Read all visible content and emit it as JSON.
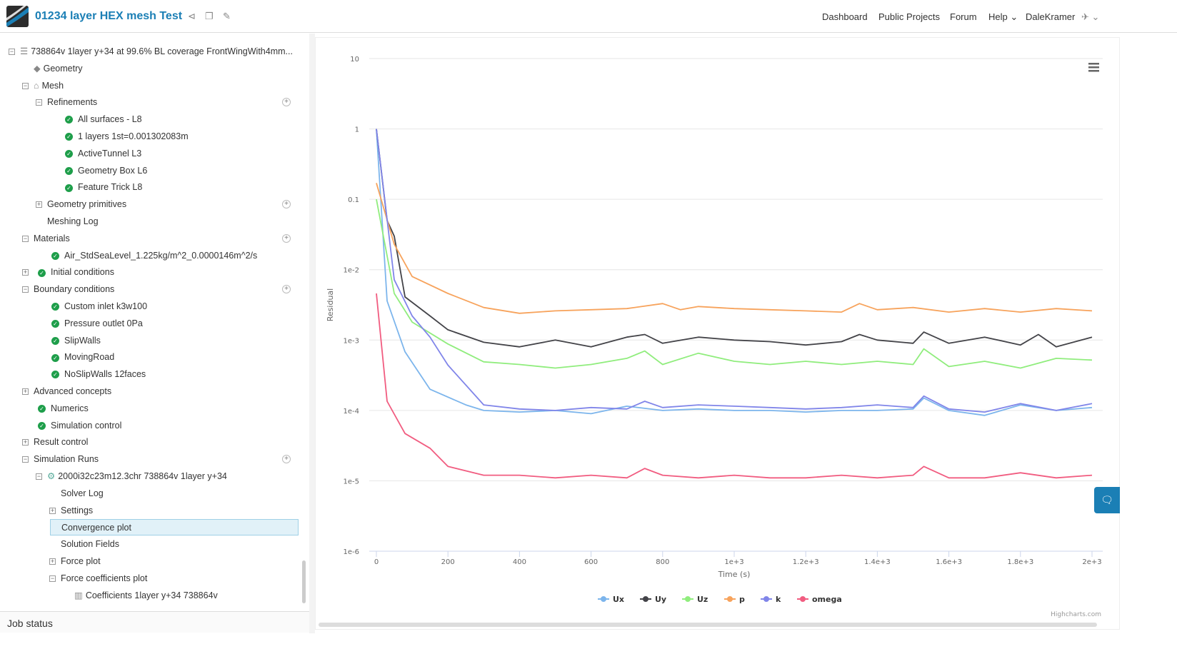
{
  "header": {
    "title": "01234 layer HEX mesh Test",
    "nav": [
      "Dashboard",
      "Public Projects",
      "Forum",
      "Help",
      "DaleKramer"
    ]
  },
  "tree": [
    {
      "label": "738864v 1layer y+34 at 99.6% BL coverage FrontWingWith4mm...",
      "d": 0,
      "tog": "-",
      "icon": "list"
    },
    {
      "label": "Geometry",
      "d": 1,
      "tog": "",
      "icon": "geometry"
    },
    {
      "label": "Mesh",
      "d": 1,
      "tog": "-",
      "icon": "mesh"
    },
    {
      "label": "Refinements",
      "d": 2,
      "tog": "-",
      "icon": "",
      "add": true
    },
    {
      "label": "All surfaces - L8",
      "d": 3,
      "tog": "",
      "icon": "check"
    },
    {
      "label": "1 layers 1st=0.001302083m",
      "d": 3,
      "tog": "",
      "icon": "check"
    },
    {
      "label": "ActiveTunnel L3",
      "d": 3,
      "tog": "",
      "icon": "check"
    },
    {
      "label": "Geometry Box L6",
      "d": 3,
      "tog": "",
      "icon": "check"
    },
    {
      "label": "Feature Trick L8",
      "d": 3,
      "tog": "",
      "icon": "check"
    },
    {
      "label": "Geometry primitives",
      "d": 2,
      "tog": "+",
      "icon": "",
      "add": true
    },
    {
      "label": "Meshing Log",
      "d": 2,
      "tog": "",
      "icon": ""
    },
    {
      "label": "Materials",
      "d": 1,
      "tog": "-",
      "icon": "",
      "add": true
    },
    {
      "label": "Air_StdSeaLevel_1.225kg/m^2_0.0000146m^2/s",
      "d": 2,
      "tog": "",
      "icon": "check"
    },
    {
      "label": "Initial conditions",
      "d": 1,
      "tog": "+",
      "icon": "check"
    },
    {
      "label": "Boundary conditions",
      "d": 1,
      "tog": "-",
      "icon": "",
      "add": true
    },
    {
      "label": "Custom inlet k3w100",
      "d": 2,
      "tog": "",
      "icon": "check"
    },
    {
      "label": "Pressure outlet 0Pa",
      "d": 2,
      "tog": "",
      "icon": "check"
    },
    {
      "label": "SlipWalls",
      "d": 2,
      "tog": "",
      "icon": "check"
    },
    {
      "label": "MovingRoad",
      "d": 2,
      "tog": "",
      "icon": "check"
    },
    {
      "label": "NoSlipWalls 12faces",
      "d": 2,
      "tog": "",
      "icon": "check"
    },
    {
      "label": "Advanced concepts",
      "d": 1,
      "tog": "+",
      "icon": ""
    },
    {
      "label": "Numerics",
      "d": 1,
      "tog": "",
      "icon": "check"
    },
    {
      "label": "Simulation control",
      "d": 1,
      "tog": "",
      "icon": "check"
    },
    {
      "label": "Result control",
      "d": 1,
      "tog": "+",
      "icon": ""
    },
    {
      "label": "Simulation Runs",
      "d": 1,
      "tog": "-",
      "icon": "",
      "add": true
    },
    {
      "label": "2000i32c23m12.3chr 738864v 1layer y+34",
      "d": 2,
      "tog": "-",
      "icon": "gear"
    },
    {
      "label": "Solver Log",
      "d": 3,
      "tog": "",
      "icon": ""
    },
    {
      "label": "Settings",
      "d": 3,
      "tog": "+",
      "icon": ""
    },
    {
      "label": "Convergence plot",
      "d": 3,
      "tog": "",
      "icon": "",
      "selected": true
    },
    {
      "label": "Solution Fields",
      "d": 3,
      "tog": "",
      "icon": ""
    },
    {
      "label": "Force plot",
      "d": 3,
      "tog": "+",
      "icon": ""
    },
    {
      "label": "Force coefficients plot",
      "d": 3,
      "tog": "-",
      "icon": ""
    },
    {
      "label": "Coefficients 1layer y+34 738864v",
      "d": 4,
      "tog": "",
      "icon": "chart"
    }
  ],
  "job_status": "Job status",
  "credits": "Highcharts.com",
  "chart_data": {
    "type": "line",
    "xlabel": "Time (s)",
    "ylabel": "Residual",
    "yscale": "log",
    "xlim": [
      0,
      2000
    ],
    "ylim": [
      1e-06,
      10
    ],
    "xticks": [
      {
        "v": 0,
        "l": "0"
      },
      {
        "v": 200,
        "l": "200"
      },
      {
        "v": 400,
        "l": "400"
      },
      {
        "v": 600,
        "l": "600"
      },
      {
        "v": 800,
        "l": "800"
      },
      {
        "v": 1000,
        "l": "1e+3"
      },
      {
        "v": 1200,
        "l": "1.2e+3"
      },
      {
        "v": 1400,
        "l": "1.4e+3"
      },
      {
        "v": 1600,
        "l": "1.6e+3"
      },
      {
        "v": 1800,
        "l": "1.8e+3"
      },
      {
        "v": 2000,
        "l": "2e+3"
      }
    ],
    "yticks": [
      {
        "v": 10,
        "l": "10"
      },
      {
        "v": 1,
        "l": "1"
      },
      {
        "v": 0.1,
        "l": "0.1"
      },
      {
        "v": 0.01,
        "l": "1e-2"
      },
      {
        "v": 0.001,
        "l": "1e-3"
      },
      {
        "v": 0.0001,
        "l": "1e-4"
      },
      {
        "v": 1e-05,
        "l": "1e-5"
      },
      {
        "v": 1e-06,
        "l": "1e-6"
      }
    ],
    "legend": "bottom-center",
    "series": [
      {
        "name": "Ux",
        "color": "#7cb5ec",
        "x": [
          0,
          30,
          80,
          150,
          250,
          300,
          400,
          500,
          600,
          700,
          800,
          900,
          1000,
          1100,
          1200,
          1300,
          1400,
          1500,
          1530,
          1600,
          1700,
          1800,
          1900,
          2000
        ],
        "y": [
          1,
          0.0036,
          0.00068,
          0.0002,
          0.00012,
          0.0001,
          9.5e-05,
          0.0001,
          9e-05,
          0.000115,
          0.0001,
          0.000105,
          0.0001,
          0.0001,
          9.5e-05,
          0.0001,
          0.0001,
          0.000105,
          0.00015,
          0.0001,
          8.5e-05,
          0.00012,
          0.0001,
          0.00011
        ]
      },
      {
        "name": "Uy",
        "color": "#434348",
        "x": [
          0,
          30,
          50,
          80,
          150,
          200,
          300,
          400,
          500,
          600,
          700,
          750,
          800,
          900,
          1000,
          1100,
          1200,
          1300,
          1350,
          1400,
          1500,
          1530,
          1600,
          1700,
          1800,
          1850,
          1900,
          2000
        ],
        "y": [
          1,
          0.05,
          0.03,
          0.0041,
          0.0022,
          0.0014,
          0.00093,
          0.0008,
          0.001,
          0.0008,
          0.0011,
          0.0012,
          0.0009,
          0.0011,
          0.001,
          0.00095,
          0.00085,
          0.00095,
          0.0012,
          0.001,
          0.0009,
          0.0013,
          0.0009,
          0.0011,
          0.00085,
          0.0012,
          0.0008,
          0.0011
        ]
      },
      {
        "name": "Uz",
        "color": "#90ed7d",
        "x": [
          0,
          50,
          100,
          200,
          300,
          400,
          500,
          600,
          700,
          750,
          800,
          900,
          1000,
          1100,
          1200,
          1300,
          1400,
          1500,
          1530,
          1600,
          1700,
          1800,
          1900,
          2000
        ],
        "y": [
          0.1,
          0.0046,
          0.0018,
          0.00088,
          0.00049,
          0.00045,
          0.0004,
          0.00045,
          0.00055,
          0.0007,
          0.00045,
          0.00065,
          0.0005,
          0.00045,
          0.0005,
          0.00045,
          0.0005,
          0.00045,
          0.00075,
          0.00042,
          0.0005,
          0.0004,
          0.00055,
          0.00052
        ]
      },
      {
        "name": "p",
        "color": "#f7a35c",
        "x": [
          0,
          50,
          100,
          200,
          300,
          400,
          500,
          600,
          700,
          800,
          850,
          900,
          1000,
          1100,
          1200,
          1300,
          1350,
          1400,
          1500,
          1600,
          1700,
          1800,
          1900,
          2000
        ],
        "y": [
          0.17,
          0.023,
          0.008,
          0.0046,
          0.0029,
          0.0024,
          0.0026,
          0.0027,
          0.0028,
          0.0033,
          0.0027,
          0.003,
          0.0028,
          0.0027,
          0.0026,
          0.0025,
          0.0033,
          0.0027,
          0.0029,
          0.0025,
          0.0028,
          0.0025,
          0.0028,
          0.0026
        ]
      },
      {
        "name": "k",
        "color": "#8085e9",
        "x": [
          0,
          50,
          100,
          150,
          200,
          300,
          400,
          500,
          600,
          700,
          750,
          800,
          900,
          1000,
          1100,
          1200,
          1300,
          1400,
          1500,
          1530,
          1600,
          1700,
          1800,
          1900,
          2000
        ],
        "y": [
          1,
          0.0072,
          0.0022,
          0.0011,
          0.00044,
          0.00012,
          0.000105,
          0.0001,
          0.00011,
          0.000105,
          0.000135,
          0.00011,
          0.00012,
          0.000115,
          0.00011,
          0.000105,
          0.00011,
          0.00012,
          0.00011,
          0.00016,
          0.000105,
          9.5e-05,
          0.000125,
          0.0001,
          0.000125
        ]
      },
      {
        "name": "omega",
        "color": "#f15c80",
        "x": [
          0,
          30,
          80,
          150,
          200,
          300,
          400,
          500,
          600,
          700,
          750,
          800,
          900,
          1000,
          1100,
          1200,
          1300,
          1400,
          1500,
          1530,
          1600,
          1700,
          1800,
          1900,
          2000
        ],
        "y": [
          0.0046,
          0.000135,
          4.7e-05,
          2.9e-05,
          1.6e-05,
          1.2e-05,
          1.2e-05,
          1.1e-05,
          1.2e-05,
          1.1e-05,
          1.5e-05,
          1.2e-05,
          1.1e-05,
          1.2e-05,
          1.1e-05,
          1.1e-05,
          1.2e-05,
          1.1e-05,
          1.2e-05,
          1.6e-05,
          1.1e-05,
          1.1e-05,
          1.3e-05,
          1.1e-05,
          1.2e-05
        ]
      }
    ]
  }
}
